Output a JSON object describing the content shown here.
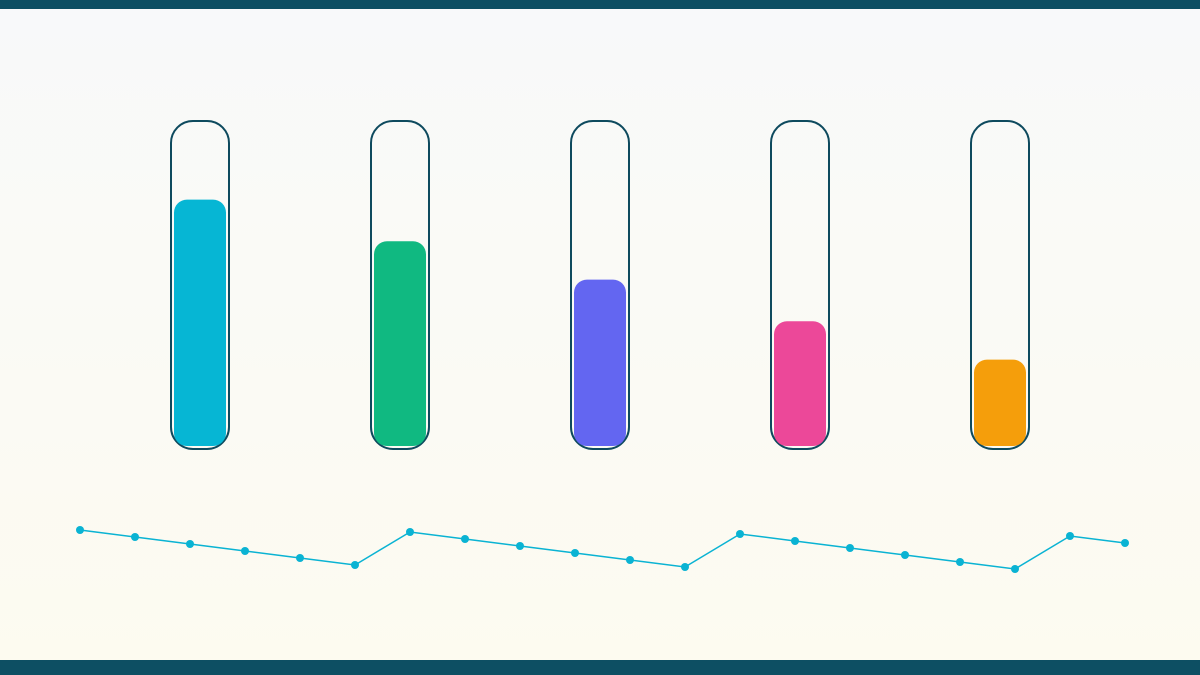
{
  "chart_data": {
    "type": "tubes",
    "tubes": {
      "colors": [
        "#06b6d4",
        "#10b981",
        "#6366f1",
        "#ec4899",
        "#f59e0b"
      ],
      "values": [
        77,
        64,
        52,
        39,
        27
      ],
      "ylim": [
        0,
        100
      ]
    },
    "line": {
      "color": "#0ab3d3",
      "values": [
        70,
        63,
        56,
        49,
        42,
        35,
        68,
        61,
        54,
        47,
        40,
        33,
        66,
        59,
        52,
        45,
        38,
        31,
        64,
        57
      ],
      "ylim": [
        0,
        100
      ]
    }
  }
}
